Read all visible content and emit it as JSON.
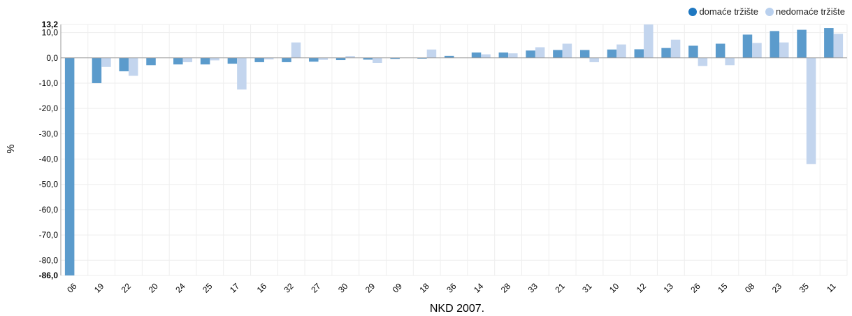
{
  "legend": {
    "items": [
      {
        "label": "domaće tržište",
        "color": "#1f78c1"
      },
      {
        "label": "nedomaće tržište",
        "color": "#b9d0ee"
      }
    ]
  },
  "colors": {
    "domestic_bar": "#5b9bcc",
    "foreign_bar": "#c3d5ee",
    "grid": "#eeeeee",
    "axis": "#999999"
  },
  "chart_data": {
    "type": "bar",
    "xlabel": "NKD 2007.",
    "ylabel": "%",
    "ylim": [
      -86.0,
      13.2
    ],
    "yticks": [
      13.2,
      10.0,
      0.0,
      -10.0,
      -20.0,
      -30.0,
      -40.0,
      -50.0,
      -60.0,
      -70.0,
      -80.0,
      -86.0
    ],
    "ytick_labels": [
      "13,2",
      "10,0",
      "0,0",
      "-10,0",
      "-20,0",
      "-30,0",
      "-40,0",
      "-50,0",
      "-60,0",
      "-70,0",
      "-80,0",
      "-86,0"
    ],
    "grid": true,
    "legend_position": "top-right",
    "categories": [
      "06",
      "19",
      "22",
      "20",
      "24",
      "25",
      "17",
      "16",
      "32",
      "27",
      "30",
      "29",
      "09",
      "18",
      "36",
      "14",
      "28",
      "33",
      "21",
      "31",
      "10",
      "12",
      "13",
      "26",
      "15",
      "08",
      "23",
      "35",
      "11"
    ],
    "series": [
      {
        "name": "domaće tržište",
        "values": [
          -86.0,
          -10.0,
          -5.3,
          -2.9,
          -2.6,
          -2.6,
          -2.3,
          -1.7,
          -1.7,
          -1.5,
          -0.9,
          -0.7,
          -0.4,
          -0.3,
          0.8,
          2.1,
          2.1,
          2.9,
          3.1,
          3.1,
          3.3,
          3.4,
          3.9,
          4.8,
          5.6,
          9.2,
          10.6,
          11.1,
          11.8
        ]
      },
      {
        "name": "nedomaće tržište",
        "values": [
          0.0,
          -3.6,
          -7.1,
          0.0,
          -1.7,
          -1.0,
          -12.5,
          -0.6,
          6.1,
          -0.8,
          0.7,
          -2.0,
          0.0,
          3.3,
          0.0,
          1.4,
          1.8,
          4.2,
          5.6,
          -1.7,
          5.3,
          13.2,
          7.2,
          -3.2,
          -2.9,
          5.9,
          6.1,
          -42.0,
          9.5
        ]
      }
    ]
  }
}
